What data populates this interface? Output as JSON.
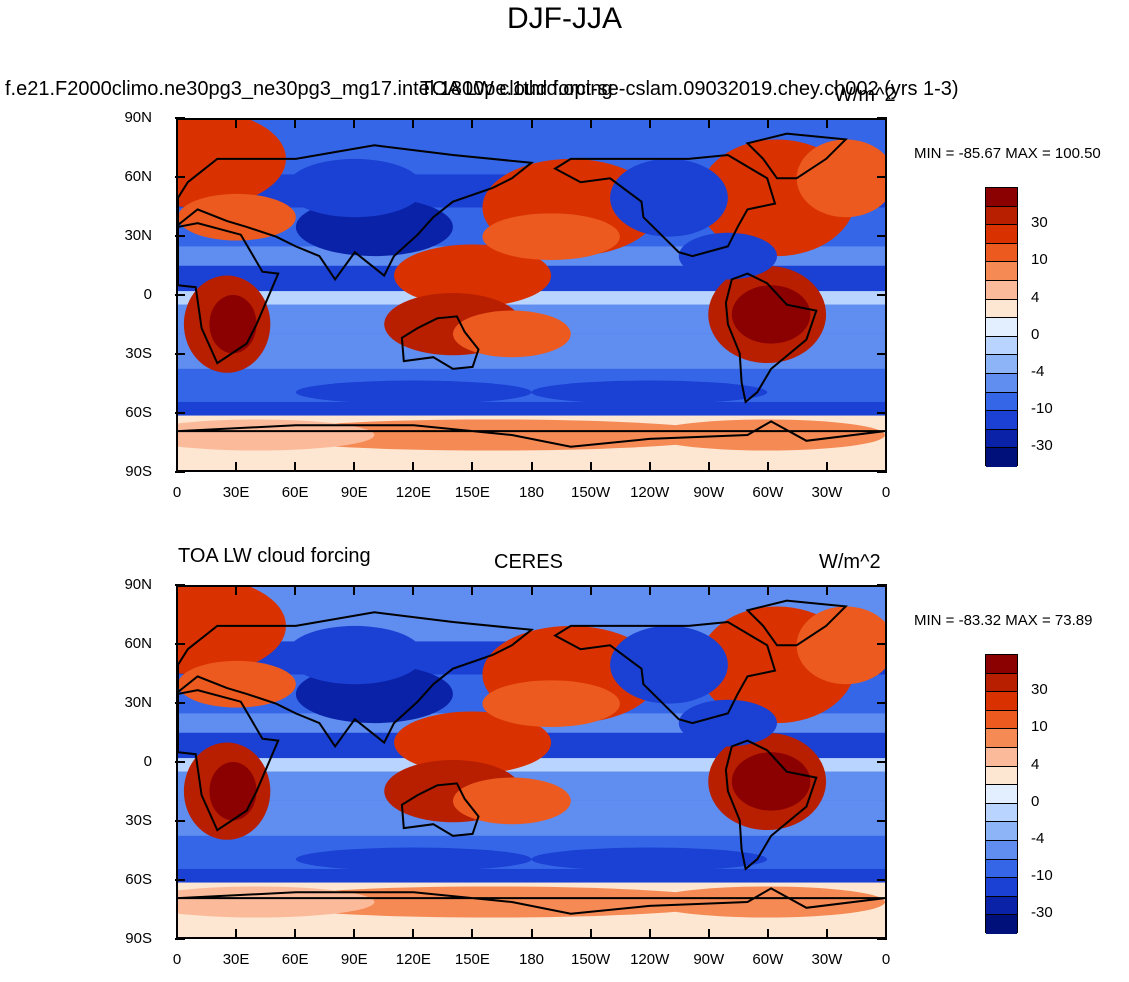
{
  "figure": {
    "title": "DJF-JJA"
  },
  "panels": [
    {
      "left_title": "f.e21.F2000climo.ne30pg3_ne30pg3_mg17.intel.1800pe.1thrd.opt-se-cslam.09032019.chey.ch002 (yrs 1-3)",
      "center_title": "TOA LW cloud forcing",
      "right_title": "W/m^2",
      "minmax": "MIN = -85.67 MAX = 100.50"
    },
    {
      "left_title": "TOA LW cloud forcing",
      "center_title": "CERES",
      "right_title": "W/m^2",
      "minmax": "MIN = -83.32 MAX =  73.89"
    }
  ],
  "lat_ticks": [
    "90N",
    "60N",
    "30N",
    "0",
    "30S",
    "60S",
    "90S"
  ],
  "lon_ticks": [
    "0",
    "30E",
    "60E",
    "90E",
    "120E",
    "150E",
    "180",
    "150W",
    "120W",
    "90W",
    "60W",
    "30W",
    "0"
  ],
  "colorbar": {
    "labels": [
      "30",
      "10",
      "4",
      "0",
      "-4",
      "-10",
      "-30"
    ],
    "colors": [
      "#8b0000",
      "#b81f00",
      "#d93200",
      "#ec5a1f",
      "#f58a55",
      "#fbbb9b",
      "#fde6d2",
      "#e3efff",
      "#b9d5ff",
      "#8cb4f7",
      "#5f8df0",
      "#3566e8",
      "#1a40d4",
      "#0a22a8",
      "#00107a"
    ]
  }
}
